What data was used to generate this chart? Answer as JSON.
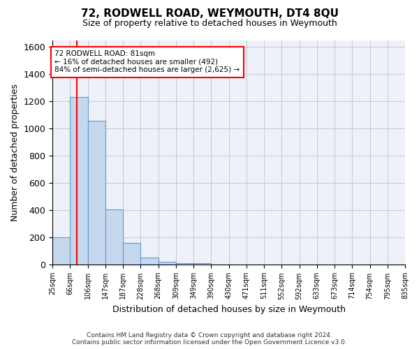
{
  "title": "72, RODWELL ROAD, WEYMOUTH, DT4 8QU",
  "subtitle": "Size of property relative to detached houses in Weymouth",
  "xlabel": "Distribution of detached houses by size in Weymouth",
  "ylabel": "Number of detached properties",
  "bin_labels": [
    "25sqm",
    "66sqm",
    "106sqm",
    "147sqm",
    "187sqm",
    "228sqm",
    "268sqm",
    "309sqm",
    "349sqm",
    "390sqm",
    "430sqm",
    "471sqm",
    "511sqm",
    "552sqm",
    "592sqm",
    "633sqm",
    "673sqm",
    "714sqm",
    "754sqm",
    "795sqm",
    "835sqm"
  ],
  "bar_values": [
    200,
    1230,
    1060,
    405,
    160,
    55,
    25,
    15,
    10,
    0,
    0,
    0,
    0,
    0,
    0,
    0,
    0,
    0,
    0,
    0
  ],
  "bar_color": "#c5d8ed",
  "bar_edge_color": "#5b9bd5",
  "ylim": [
    0,
    1650
  ],
  "yticks": [
    0,
    200,
    400,
    600,
    800,
    1000,
    1200,
    1400,
    1600
  ],
  "annotation_text": "72 RODWELL ROAD: 81sqm\n← 16% of detached houses are smaller (492)\n84% of semi-detached houses are larger (2,625) →",
  "footer_line1": "Contains HM Land Registry data © Crown copyright and database right 2024.",
  "footer_line2": "Contains public sector information licensed under the Open Government Licence v3.0.",
  "grid_color": "#c0c8d8",
  "background_color": "#eef2f8"
}
